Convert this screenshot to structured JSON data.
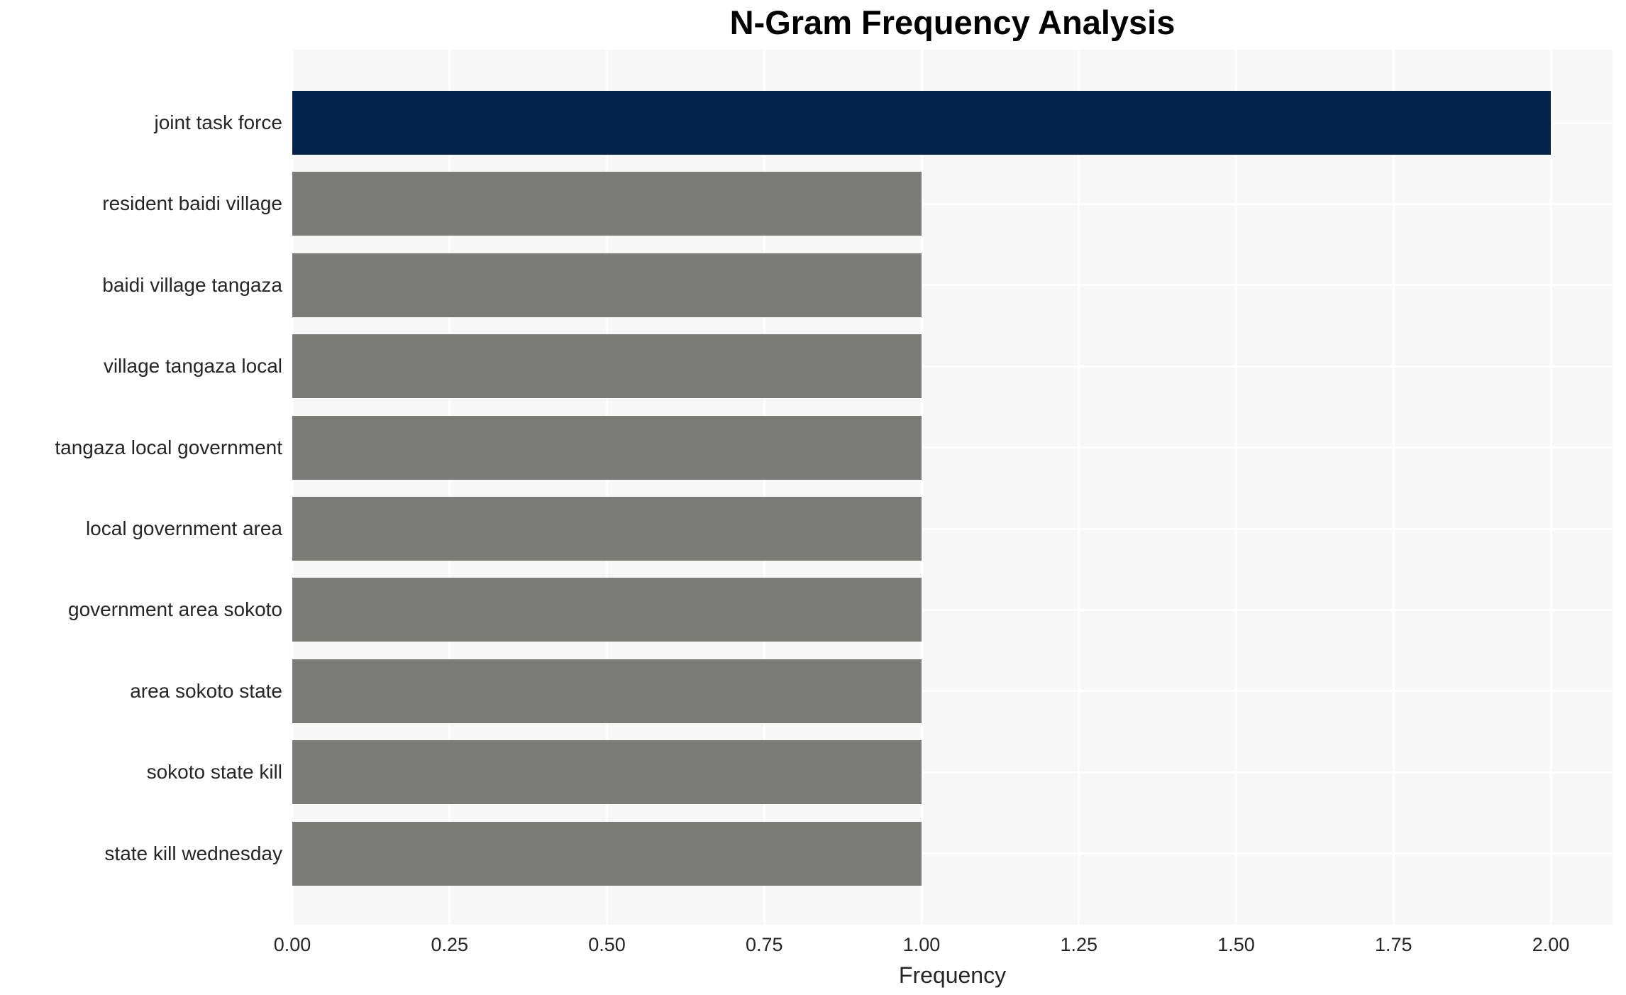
{
  "chart_data": {
    "type": "bar",
    "orientation": "horizontal",
    "title": "N-Gram Frequency Analysis",
    "xlabel": "Frequency",
    "ylabel": "",
    "categories": [
      "joint task force",
      "resident baidi village",
      "baidi village tangaza",
      "village tangaza local",
      "tangaza local government",
      "local government area",
      "government area sokoto",
      "area sokoto state",
      "sokoto state kill",
      "state kill wednesday"
    ],
    "values": [
      2,
      1,
      1,
      1,
      1,
      1,
      1,
      1,
      1,
      1
    ],
    "bar_colors": [
      "#01234d",
      "#7b7b78",
      "#7b7b78",
      "#7b7b78",
      "#7b7b78",
      "#7b7b78",
      "#7b7b78",
      "#7b7b78",
      "#7b7b78",
      "#7b7b78"
    ],
    "xlim": [
      0,
      2.098
    ],
    "xticks": [
      0,
      0.25,
      0.5,
      0.75,
      1.0,
      1.25,
      1.5,
      1.75,
      2.0
    ],
    "xtick_labels": [
      "0.00",
      "0.25",
      "0.50",
      "0.75",
      "1.00",
      "1.25",
      "1.50",
      "1.75",
      "2.00"
    ],
    "grid": true,
    "legend": "none",
    "colors": {
      "highlight_bar": "#01234d",
      "default_bar": "#7b7b78",
      "plot_background": "#f7f7f7",
      "grid_line": "#ffffff",
      "text": "#262626",
      "title_text": "#000000",
      "figure_background": "#ffffff"
    }
  }
}
